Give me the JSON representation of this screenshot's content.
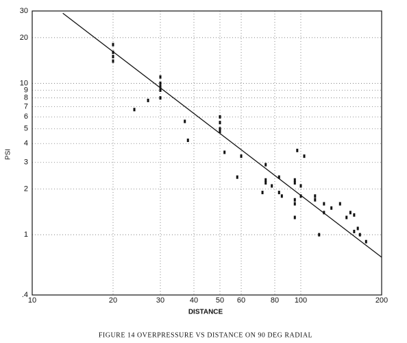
{
  "chart_data": {
    "type": "scatter",
    "caption": "FIGURE 14  OVERPRESSURE VS  DISTANCE ON 90 DEG RADIAL",
    "x_label": "DISTANCE",
    "y_label": "PSI",
    "log_x": true,
    "log_y": true,
    "grid": true,
    "xlim": [
      10,
      200
    ],
    "ylim": [
      0.4,
      30
    ],
    "xticks": [
      10,
      20,
      30,
      40,
      50,
      60,
      80,
      100,
      200
    ],
    "yticks": [
      {
        "value": 0.4,
        "label": ".4"
      },
      1,
      2,
      3,
      4,
      5,
      6,
      7,
      8,
      9,
      10,
      20,
      30
    ],
    "points": {
      "color": "#111",
      "x": [
        20,
        20,
        20,
        20,
        24,
        27,
        30,
        30,
        30,
        30,
        30,
        37,
        38,
        50,
        50,
        50,
        50,
        52,
        58,
        60,
        72,
        74,
        74,
        74,
        78,
        83,
        83,
        85,
        95,
        95,
        95,
        95,
        95,
        97,
        100,
        100,
        103,
        113,
        113,
        117,
        122,
        122,
        130,
        140,
        148,
        153,
        158,
        158,
        163,
        166,
        175
      ],
      "y": [
        18,
        16,
        15,
        14,
        6.7,
        7.7,
        11,
        10,
        9.5,
        9,
        8,
        5.6,
        4.2,
        6,
        5.5,
        5,
        4.8,
        3.5,
        2.4,
        3.3,
        1.9,
        2.9,
        2.3,
        2.2,
        2.1,
        2.4,
        1.9,
        1.8,
        2.3,
        2.2,
        1.7,
        1.6,
        1.3,
        3.6,
        2.1,
        1.8,
        3.3,
        1.8,
        1.7,
        1.0,
        1.6,
        1.4,
        1.5,
        1.6,
        1.3,
        1.4,
        1.05,
        1.35,
        1.1,
        1.0,
        0.9
      ]
    },
    "line": {
      "color": "#111",
      "x": [
        13,
        200
      ],
      "y": [
        29,
        0.71
      ]
    }
  }
}
